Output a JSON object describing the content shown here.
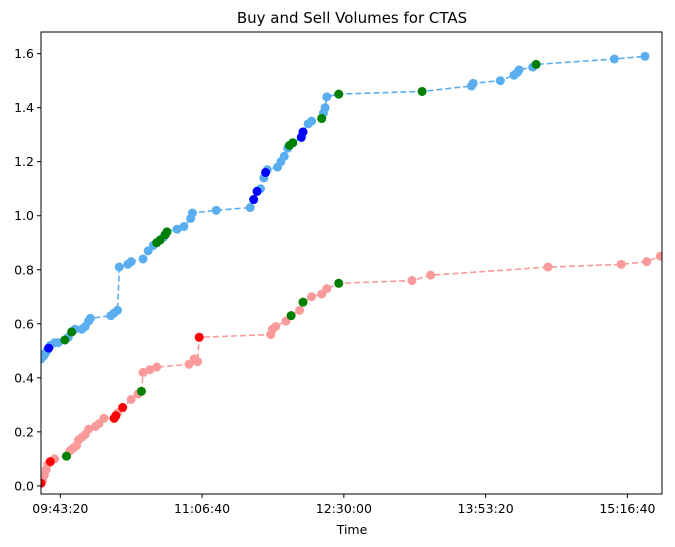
{
  "chart_data": {
    "type": "scatter",
    "title": "Buy and Sell Volumes for CTAS",
    "xlabel": "Time",
    "ylabel": "",
    "x_unit": "time of day (HH:MM:SS)",
    "xlim": [
      "09:32:00",
      "15:37:00"
    ],
    "ylim": [
      -0.03,
      1.68
    ],
    "x_tick_labels": [
      "09:43:20",
      "11:06:40",
      "12:30:00",
      "13:53:20",
      "15:16:40"
    ],
    "y_tick_labels": [
      "0.0",
      "0.2",
      "0.4",
      "0.6",
      "0.8",
      "1.0",
      "1.2",
      "1.4",
      "1.6"
    ],
    "grid": false,
    "legend": "none",
    "colors": {
      "buy_line": "#5aaef0",
      "sell_line": "#fa9a9a",
      "marker_green": "#008000",
      "marker_blue": "#0000ff",
      "marker_red": "#ff0000"
    },
    "series": [
      {
        "line_color": "#5aaef0",
        "linestyle": "dashed",
        "points": [
          [
            "09:32:00",
            0.47
          ],
          [
            "09:33:30",
            0.48
          ],
          [
            "09:34:30",
            0.49
          ],
          [
            "09:35:30",
            0.5
          ],
          [
            "09:36:30",
            0.51
          ],
          [
            "09:37:30",
            0.52
          ],
          [
            "09:40:00",
            0.53
          ],
          [
            "09:42:00",
            0.53
          ],
          [
            "09:46:00",
            0.54
          ],
          [
            "09:48:00",
            0.55
          ],
          [
            "09:50:00",
            0.57
          ],
          [
            "09:52:00",
            0.58
          ],
          [
            "09:56:00",
            0.58
          ],
          [
            "09:58:00",
            0.59
          ],
          [
            "10:00:00",
            0.61
          ],
          [
            "10:01:00",
            0.62
          ],
          [
            "10:13:00",
            0.63
          ],
          [
            "10:15:00",
            0.64
          ],
          [
            "10:17:00",
            0.65
          ],
          [
            "10:18:00",
            0.81
          ],
          [
            "10:23:00",
            0.82
          ],
          [
            "10:25:00",
            0.83
          ],
          [
            "10:32:00",
            0.84
          ],
          [
            "10:35:00",
            0.87
          ],
          [
            "10:38:00",
            0.89
          ],
          [
            "10:40:00",
            0.9
          ],
          [
            "10:42:00",
            0.91
          ],
          [
            "10:44:00",
            0.92
          ],
          [
            "10:45:00",
            0.93
          ],
          [
            "10:46:00",
            0.94
          ],
          [
            "10:52:00",
            0.95
          ],
          [
            "10:56:00",
            0.96
          ],
          [
            "11:00:00",
            0.99
          ],
          [
            "11:01:00",
            1.01
          ],
          [
            "11:15:00",
            1.02
          ],
          [
            "11:35:00",
            1.03
          ],
          [
            "11:37:00",
            1.06
          ],
          [
            "11:39:00",
            1.09
          ],
          [
            "11:41:00",
            1.1
          ],
          [
            "11:43:00",
            1.14
          ],
          [
            "11:44:00",
            1.16
          ],
          [
            "11:45:00",
            1.17
          ],
          [
            "11:51:00",
            1.18
          ],
          [
            "11:53:00",
            1.2
          ],
          [
            "11:55:00",
            1.22
          ],
          [
            "11:57:00",
            1.25
          ],
          [
            "11:58:00",
            1.26
          ],
          [
            "12:00:00",
            1.27
          ],
          [
            "12:05:00",
            1.29
          ],
          [
            "12:06:00",
            1.31
          ],
          [
            "12:09:00",
            1.34
          ],
          [
            "12:11:00",
            1.35
          ],
          [
            "12:17:00",
            1.36
          ],
          [
            "12:18:00",
            1.38
          ],
          [
            "12:19:00",
            1.4
          ],
          [
            "12:20:00",
            1.44
          ],
          [
            "12:27:00",
            1.45
          ],
          [
            "13:16:00",
            1.46
          ],
          [
            "13:45:00",
            1.48
          ],
          [
            "13:46:00",
            1.49
          ],
          [
            "14:02:00",
            1.5
          ],
          [
            "14:10:00",
            1.52
          ],
          [
            "14:12:00",
            1.53
          ],
          [
            "14:13:00",
            1.54
          ],
          [
            "14:21:00",
            1.55
          ],
          [
            "14:23:00",
            1.56
          ],
          [
            "15:09:00",
            1.58
          ],
          [
            "15:27:00",
            1.59
          ]
        ],
        "marker_colors": {
          "green": [
            [
              "09:46:00",
              0.54
            ],
            [
              "09:50:00",
              0.57
            ],
            [
              "10:40:00",
              0.9
            ],
            [
              "10:42:00",
              0.91
            ],
            [
              "10:45:00",
              0.93
            ],
            [
              "10:46:00",
              0.94
            ],
            [
              "11:58:00",
              1.26
            ],
            [
              "12:00:00",
              1.27
            ],
            [
              "12:17:00",
              1.36
            ],
            [
              "12:27:00",
              1.45
            ],
            [
              "13:16:00",
              1.46
            ],
            [
              "14:23:00",
              1.56
            ]
          ],
          "blue": [
            [
              "09:36:30",
              0.51
            ],
            [
              "11:37:00",
              1.06
            ],
            [
              "11:39:00",
              1.09
            ],
            [
              "11:44:00",
              1.16
            ],
            [
              "12:05:00",
              1.29
            ],
            [
              "12:06:00",
              1.31
            ]
          ]
        }
      },
      {
        "line_color": "#fa9a9a",
        "linestyle": "dashed",
        "points": [
          [
            "09:32:00",
            0.01
          ],
          [
            "09:33:00",
            0.02
          ],
          [
            "09:34:00",
            0.04
          ],
          [
            "09:35:00",
            0.06
          ],
          [
            "09:36:00",
            0.08
          ],
          [
            "09:37:30",
            0.09
          ],
          [
            "09:40:00",
            0.1
          ],
          [
            "09:47:00",
            0.11
          ],
          [
            "09:49:00",
            0.13
          ],
          [
            "09:51:00",
            0.14
          ],
          [
            "09:53:00",
            0.15
          ],
          [
            "09:54:00",
            0.17
          ],
          [
            "09:56:00",
            0.18
          ],
          [
            "09:58:00",
            0.19
          ],
          [
            "10:00:00",
            0.21
          ],
          [
            "10:04:00",
            0.22
          ],
          [
            "10:06:00",
            0.23
          ],
          [
            "10:09:00",
            0.25
          ],
          [
            "10:15:00",
            0.25
          ],
          [
            "10:16:00",
            0.26
          ],
          [
            "10:17:00",
            0.27
          ],
          [
            "10:20:00",
            0.29
          ],
          [
            "10:25:00",
            0.32
          ],
          [
            "10:29:00",
            0.34
          ],
          [
            "10:31:00",
            0.35
          ],
          [
            "10:32:00",
            0.42
          ],
          [
            "10:36:00",
            0.43
          ],
          [
            "10:40:00",
            0.44
          ],
          [
            "10:59:00",
            0.45
          ],
          [
            "11:02:00",
            0.47
          ],
          [
            "11:04:00",
            0.46
          ],
          [
            "11:05:00",
            0.55
          ],
          [
            "11:47:00",
            0.56
          ],
          [
            "11:48:00",
            0.58
          ],
          [
            "11:50:00",
            0.59
          ],
          [
            "11:56:00",
            0.61
          ],
          [
            "11:59:00",
            0.63
          ],
          [
            "12:04:00",
            0.65
          ],
          [
            "12:06:00",
            0.68
          ],
          [
            "12:11:00",
            0.7
          ],
          [
            "12:17:00",
            0.71
          ],
          [
            "12:20:00",
            0.73
          ],
          [
            "12:27:00",
            0.75
          ],
          [
            "13:10:00",
            0.76
          ],
          [
            "13:21:00",
            0.78
          ],
          [
            "14:30:00",
            0.81
          ],
          [
            "15:13:00",
            0.82
          ],
          [
            "15:28:00",
            0.83
          ],
          [
            "15:36:00",
            0.85
          ]
        ],
        "marker_colors": {
          "red": [
            [
              "09:32:00",
              0.01
            ],
            [
              "09:37:30",
              0.09
            ],
            [
              "10:15:00",
              0.25
            ],
            [
              "10:16:00",
              0.26
            ],
            [
              "10:20:00",
              0.29
            ],
            [
              "11:05:00",
              0.55
            ]
          ],
          "green": [
            [
              "09:47:00",
              0.11
            ],
            [
              "10:31:00",
              0.35
            ],
            [
              "11:59:00",
              0.63
            ],
            [
              "12:06:00",
              0.68
            ],
            [
              "12:27:00",
              0.75
            ]
          ]
        }
      }
    ]
  }
}
